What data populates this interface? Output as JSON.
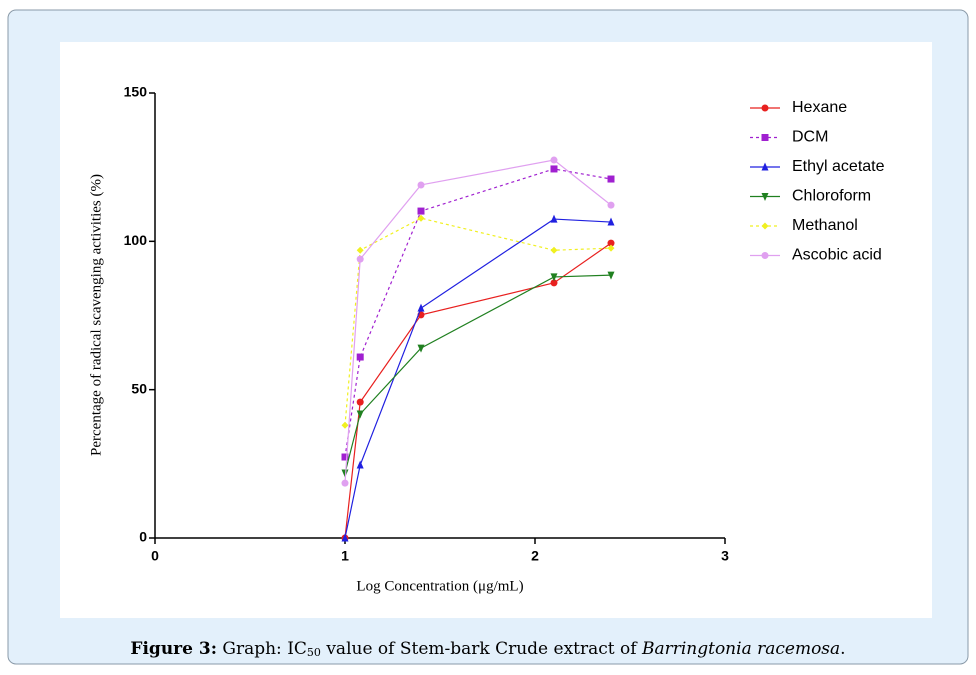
{
  "chart_data": {
    "type": "line",
    "xlabel": "Log Concentration (μg/mL)",
    "ylabel": "Percentage of radical scavenging activities (%)",
    "x": [
      1,
      1.08,
      1.4,
      2.1,
      2.4
    ],
    "xlim": [
      0,
      3
    ],
    "xticks": [
      0,
      1,
      2,
      3
    ],
    "ylim": [
      0,
      150
    ],
    "yticks": [
      0,
      50,
      100,
      150
    ],
    "legend": "right",
    "series": [
      {
        "name": "Hexane",
        "color": "#e8201f",
        "marker": "circle",
        "dash": false,
        "values": [
          0,
          45.8,
          75.2,
          86,
          99.4
        ]
      },
      {
        "name": "DCM",
        "color": "#a020d0",
        "marker": "square",
        "dash": true,
        "values": [
          27.3,
          61,
          110.2,
          124.4,
          121
        ]
      },
      {
        "name": "Ethyl acetate",
        "color": "#2020e0",
        "marker": "triangle-up",
        "dash": false,
        "values": [
          0,
          24.6,
          77.5,
          107.5,
          106.5
        ]
      },
      {
        "name": "Chloroform",
        "color": "#208020",
        "marker": "triangle-down",
        "dash": false,
        "values": [
          21.9,
          41.8,
          64,
          88,
          88.6
        ]
      },
      {
        "name": "Methanol",
        "color": "#f0f020",
        "marker": "diamond",
        "dash": true,
        "values": [
          38,
          97,
          107.8,
          97,
          97.7
        ]
      },
      {
        "name": "Ascobic acid",
        "color": "#e0a0f0",
        "marker": "circle",
        "dash": false,
        "values": [
          18.5,
          94,
          119,
          127.4,
          112.2
        ]
      }
    ]
  },
  "caption": {
    "label": "Figure 3:",
    "text": " Graph: IC",
    "sub": "50",
    "text2": " value of Stem-bark Crude extract of ",
    "italic": "Barringtonia racemosa",
    "end": "."
  }
}
